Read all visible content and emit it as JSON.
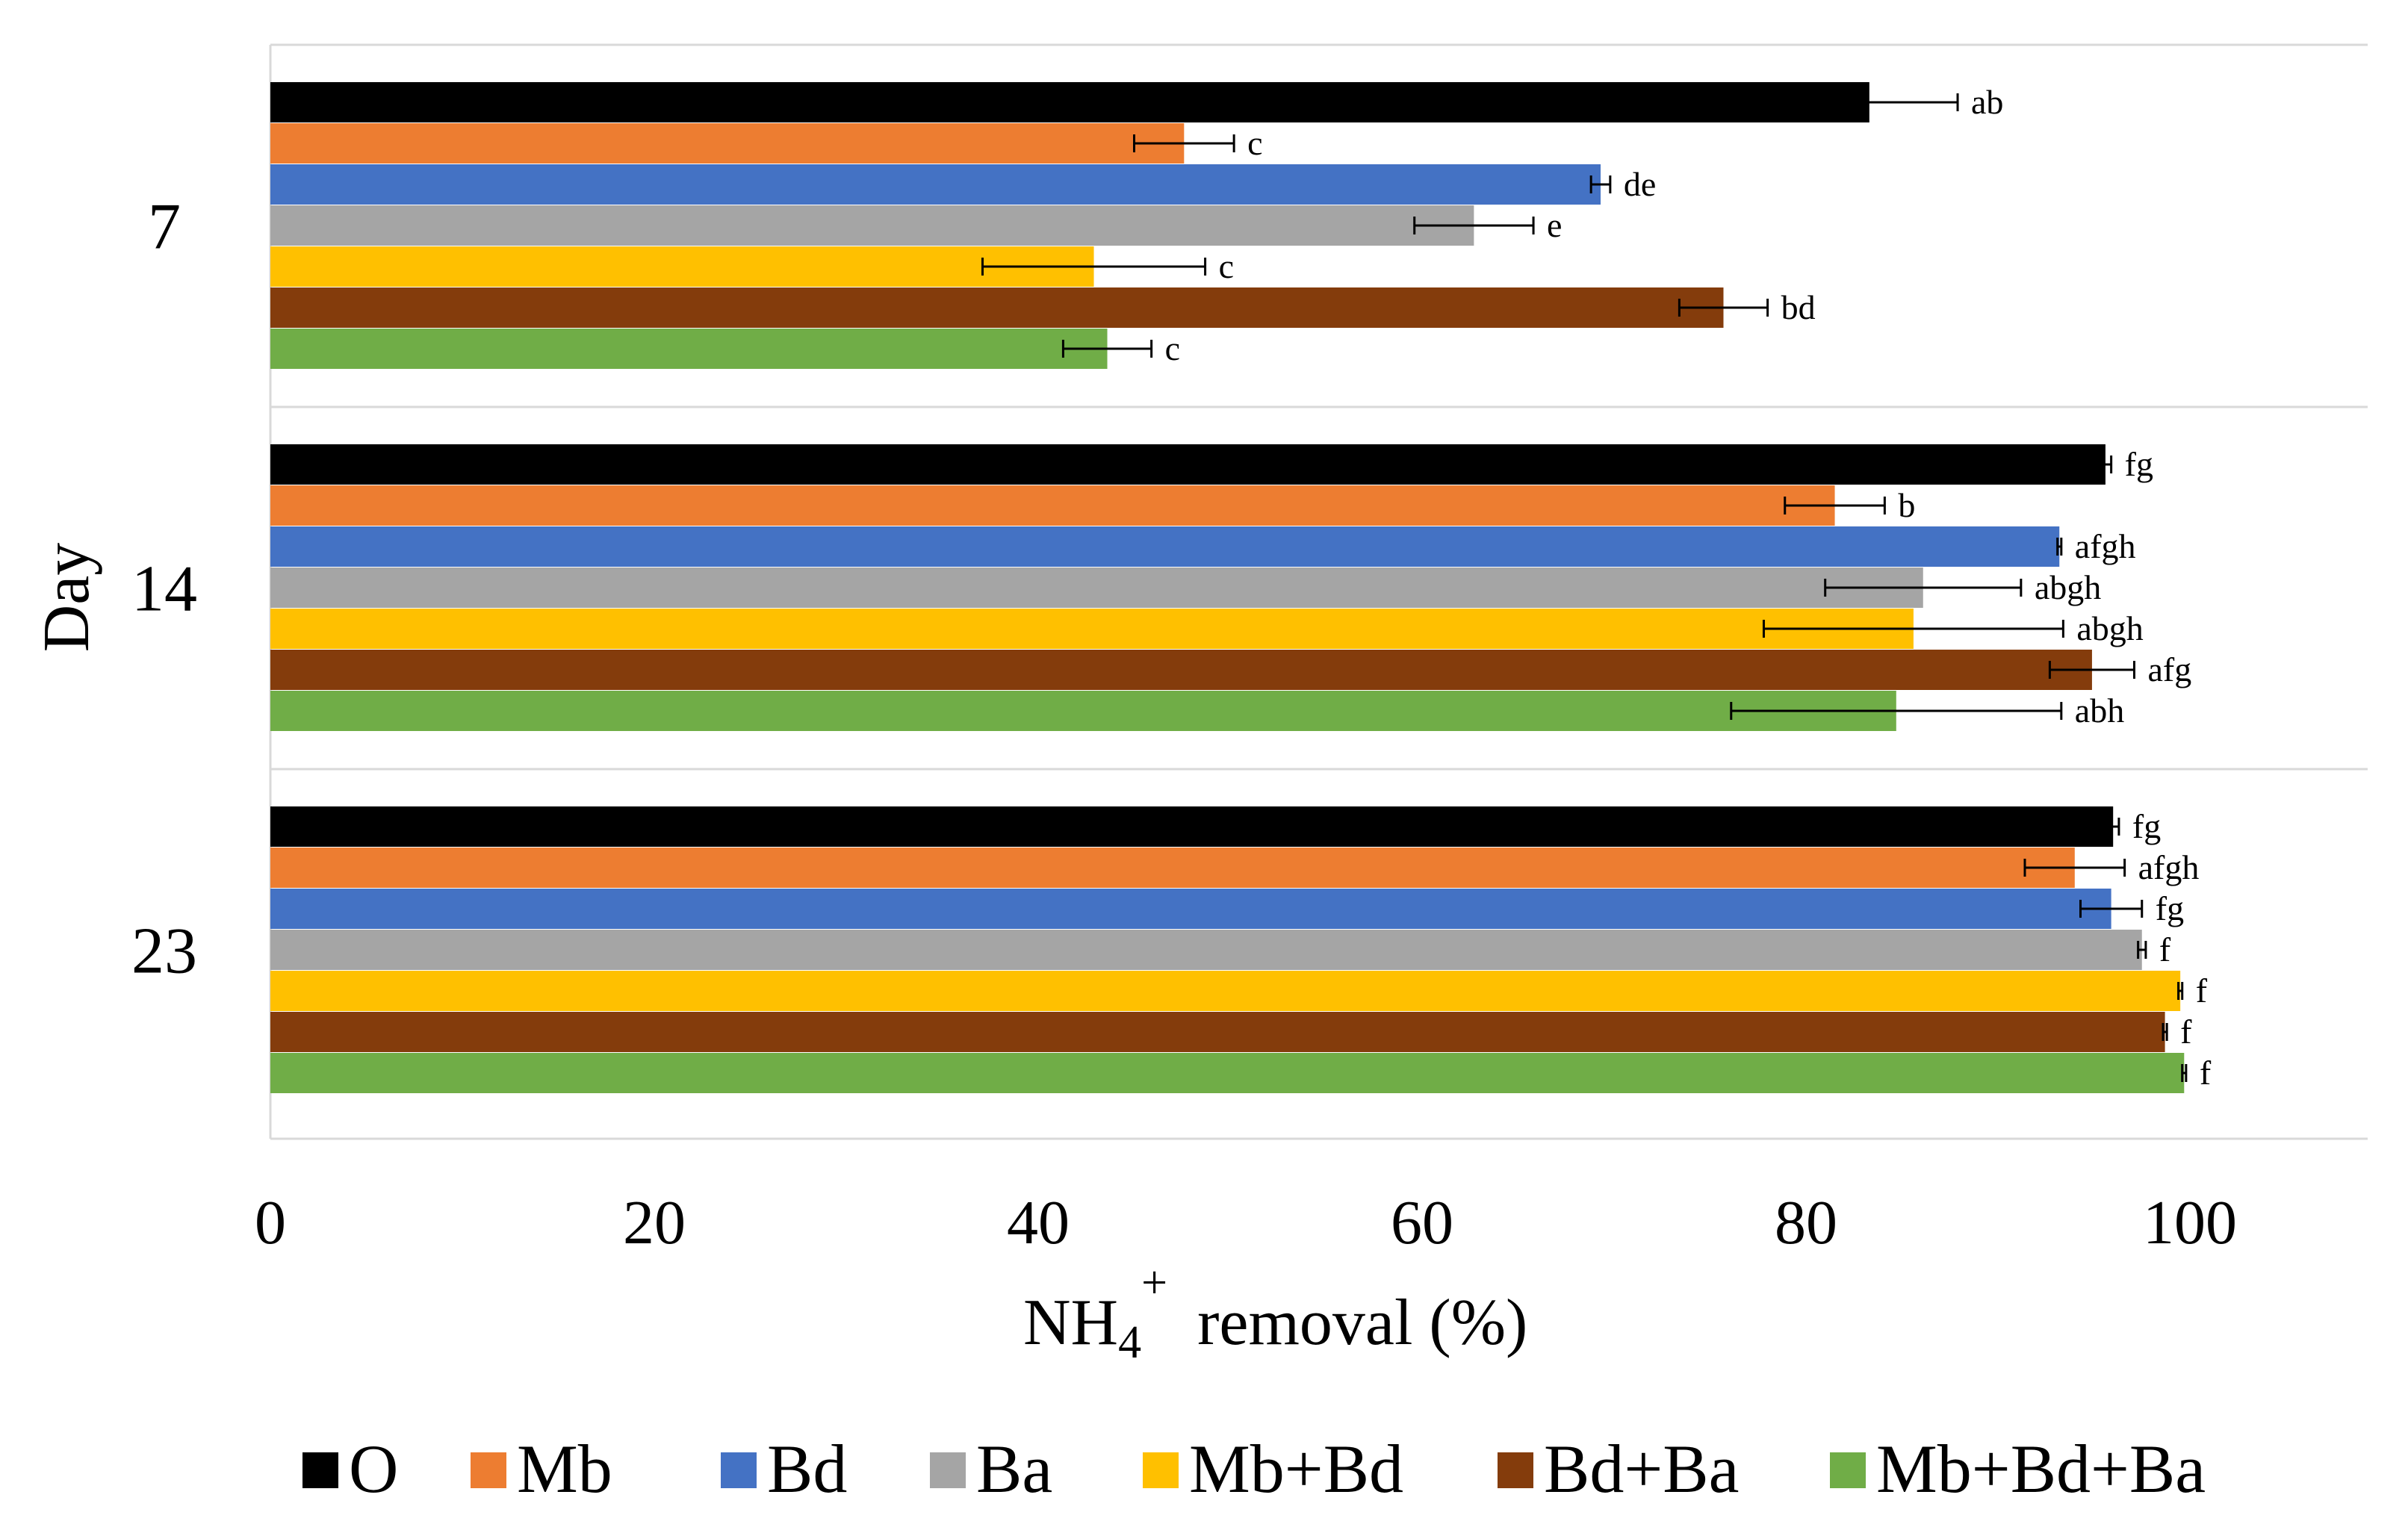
{
  "chart_data": {
    "type": "bar",
    "orientation": "horizontal",
    "title": "",
    "xlabel": "NH4+ removal (%)",
    "xlabel_parts": {
      "main": "NH",
      "sub": "4",
      "sup": "+",
      "rest": "removal (%)"
    },
    "ylabel": "Day",
    "xlim": [
      0,
      110
    ],
    "x_ticks": [
      0,
      20,
      40,
      60,
      80,
      100
    ],
    "x_tick_labels": [
      "0",
      "20",
      "40",
      "60",
      "80",
      "100"
    ],
    "grid": "horizontal separators between day groups",
    "legend_position": "bottom",
    "categories": [
      "7",
      "14",
      "23"
    ],
    "series": [
      {
        "name": "O",
        "color": "#000000",
        "values": [
          83.3,
          95.6,
          96.0
        ],
        "errors": [
          4.6,
          0.3,
          0.3
        ],
        "letters": [
          "ab",
          "fg",
          "fg"
        ]
      },
      {
        "name": "Mb",
        "color": "#ED7D31",
        "values": [
          47.6,
          81.5,
          94.0
        ],
        "errors": [
          2.6,
          2.6,
          2.6
        ],
        "letters": [
          "c",
          "b",
          "afgh"
        ]
      },
      {
        "name": "Bd",
        "color": "#4472C4",
        "values": [
          69.3,
          93.2,
          95.9
        ],
        "errors": [
          0.5,
          0.1,
          1.6
        ],
        "letters": [
          "de",
          "afgh",
          "fg"
        ]
      },
      {
        "name": "Ba",
        "color": "#A5A5A5",
        "values": [
          62.7,
          86.1,
          97.5
        ],
        "errors": [
          3.1,
          5.1,
          0.2
        ],
        "letters": [
          "e",
          "abgh",
          "f"
        ]
      },
      {
        "name": "Mb+Bd",
        "color": "#FFC000",
        "values": [
          42.9,
          85.6,
          99.5
        ],
        "errors": [
          5.8,
          7.8,
          0.1
        ],
        "letters": [
          "c",
          "abgh",
          "f"
        ]
      },
      {
        "name": "Bd+Ba",
        "color": "#843C0C",
        "values": [
          75.7,
          94.9,
          98.7
        ],
        "errors": [
          2.3,
          2.2,
          0.1
        ],
        "letters": [
          "bd",
          "afg",
          "f"
        ]
      },
      {
        "name": "Mb+Bd+Ba",
        "color": "#70AD47",
        "values": [
          43.6,
          84.7,
          99.7
        ],
        "errors": [
          2.3,
          8.6,
          0.1
        ],
        "letters": [
          "c",
          "abh",
          "f"
        ]
      }
    ]
  }
}
